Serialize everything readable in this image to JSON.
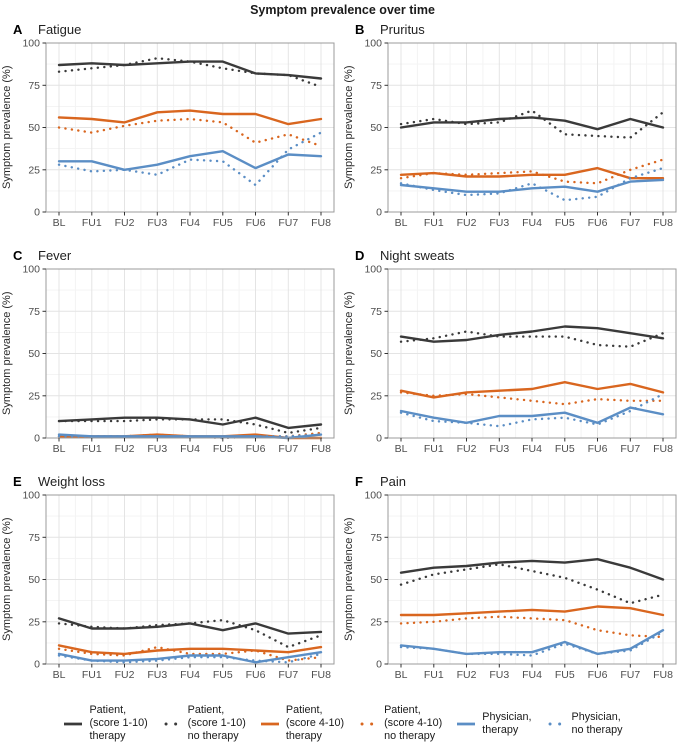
{
  "page": {
    "title": "Symptom prevalence over time"
  },
  "colors": {
    "dark": "#3a3a3a",
    "orange": "#d9661f",
    "blue": "#5b8ec5",
    "grid_major": "#e4e4e4",
    "grid_minor": "#f3f3f3",
    "panel_border": "#9b9b9b",
    "tick_mark": "#333333"
  },
  "chart_data": [
    {
      "type": "line",
      "panel": "A",
      "title": "Fatigue",
      "ylabel": "Symptom prevalence (%)",
      "xlabel": "",
      "categories": [
        "BL",
        "FU1",
        "FU2",
        "FU3",
        "FU4",
        "FU5",
        "FU6",
        "FU7",
        "FU8"
      ],
      "ylim": [
        0,
        100
      ],
      "yticks": [
        0,
        25,
        50,
        75,
        100
      ],
      "grid": true,
      "series": [
        {
          "name": "Patient, (score 1-10) therapy",
          "style": "solid",
          "color_key": "dark",
          "values": [
            87,
            88,
            87,
            88,
            89,
            89,
            82,
            81,
            79
          ]
        },
        {
          "name": "Patient, (score 1-10) no therapy",
          "style": "dotted",
          "color_key": "dark",
          "values": [
            83,
            85,
            87,
            91,
            89,
            85,
            82,
            81,
            74
          ]
        },
        {
          "name": "Patient, (score 4-10) therapy",
          "style": "solid",
          "color_key": "orange",
          "values": [
            56,
            55,
            53,
            59,
            60,
            58,
            58,
            52,
            55
          ]
        },
        {
          "name": "Patient, (score 4-10) no therapy",
          "style": "dotted",
          "color_key": "orange",
          "values": [
            50,
            47,
            51,
            54,
            55,
            53,
            41,
            46,
            39
          ]
        },
        {
          "name": "Physician, therapy",
          "style": "solid",
          "color_key": "blue",
          "values": [
            30,
            30,
            25,
            28,
            33,
            36,
            26,
            34,
            33
          ]
        },
        {
          "name": "Physician, no therapy",
          "style": "dotted",
          "color_key": "blue",
          "values": [
            28,
            24,
            25,
            22,
            31,
            30,
            16,
            37,
            47
          ]
        }
      ]
    },
    {
      "type": "line",
      "panel": "B",
      "title": "Pruritus",
      "ylabel": "Symptom prevalence (%)",
      "xlabel": "",
      "categories": [
        "BL",
        "FU1",
        "FU2",
        "FU3",
        "FU4",
        "FU5",
        "FU6",
        "FU7",
        "FU8"
      ],
      "ylim": [
        0,
        100
      ],
      "yticks": [
        0,
        25,
        50,
        75,
        100
      ],
      "grid": true,
      "series": [
        {
          "name": "Patient, (score 1-10) therapy",
          "style": "solid",
          "color_key": "dark",
          "values": [
            50,
            53,
            53,
            55,
            56,
            54,
            49,
            55,
            50
          ]
        },
        {
          "name": "Patient, (score 1-10) no therapy",
          "style": "dotted",
          "color_key": "dark",
          "values": [
            52,
            55,
            52,
            53,
            60,
            46,
            45,
            44,
            59
          ]
        },
        {
          "name": "Patient, (score 4-10) therapy",
          "style": "solid",
          "color_key": "orange",
          "values": [
            22,
            23,
            21,
            21,
            22,
            22,
            26,
            20,
            20
          ]
        },
        {
          "name": "Patient, (score 4-10) no therapy",
          "style": "dotted",
          "color_key": "orange",
          "values": [
            20,
            23,
            22,
            23,
            24,
            18,
            17,
            25,
            31
          ]
        },
        {
          "name": "Physician, therapy",
          "style": "solid",
          "color_key": "blue",
          "values": [
            16,
            14,
            12,
            12,
            14,
            15,
            12,
            18,
            19
          ]
        },
        {
          "name": "Physician, no therapy",
          "style": "dotted",
          "color_key": "blue",
          "values": [
            17,
            13,
            10,
            11,
            17,
            7,
            9,
            20,
            26
          ]
        }
      ]
    },
    {
      "type": "line",
      "panel": "C",
      "title": "Fever",
      "ylabel": "Symptom prevalence (%)",
      "xlabel": "",
      "categories": [
        "BL",
        "FU1",
        "FU2",
        "FU3",
        "FU4",
        "FU5",
        "FU6",
        "FU7",
        "FU8"
      ],
      "ylim": [
        0,
        100
      ],
      "yticks": [
        0,
        25,
        50,
        75,
        100
      ],
      "grid": true,
      "series": [
        {
          "name": "Patient, (score 1-10) therapy",
          "style": "solid",
          "color_key": "dark",
          "values": [
            10,
            11,
            12,
            12,
            11,
            8,
            12,
            6,
            8
          ]
        },
        {
          "name": "Patient, (score 1-10) no therapy",
          "style": "dotted",
          "color_key": "dark",
          "values": [
            10,
            10,
            10,
            11,
            11,
            11,
            8,
            3,
            6
          ]
        },
        {
          "name": "Patient, (score 4-10) therapy",
          "style": "solid",
          "color_key": "orange",
          "values": [
            1,
            1,
            1,
            2,
            1,
            1,
            2,
            0,
            0
          ]
        },
        {
          "name": "Patient, (score 4-10) no therapy",
          "style": "dotted",
          "color_key": "orange",
          "values": [
            1,
            1,
            1,
            2,
            1,
            0,
            1,
            1,
            3
          ]
        },
        {
          "name": "Physician, therapy",
          "style": "solid",
          "color_key": "blue",
          "values": [
            2,
            1,
            1,
            1,
            1,
            1,
            1,
            0,
            2
          ]
        },
        {
          "name": "Physician, no therapy",
          "style": "dotted",
          "color_key": "blue",
          "values": [
            1,
            1,
            1,
            1,
            1,
            0,
            1,
            1,
            2
          ]
        }
      ]
    },
    {
      "type": "line",
      "panel": "D",
      "title": "Night sweats",
      "ylabel": "Symptom prevalence (%)",
      "xlabel": "",
      "categories": [
        "BL",
        "FU1",
        "FU2",
        "FU3",
        "FU4",
        "FU5",
        "FU6",
        "FU7",
        "FU8"
      ],
      "ylim": [
        0,
        100
      ],
      "yticks": [
        0,
        25,
        50,
        75,
        100
      ],
      "grid": true,
      "series": [
        {
          "name": "Patient, (score 1-10) therapy",
          "style": "solid",
          "color_key": "dark",
          "values": [
            60,
            57,
            58,
            61,
            63,
            66,
            65,
            62,
            59
          ]
        },
        {
          "name": "Patient, (score 1-10) no therapy",
          "style": "dotted",
          "color_key": "dark",
          "values": [
            57,
            59,
            63,
            60,
            60,
            60,
            55,
            54,
            62
          ]
        },
        {
          "name": "Patient, (score 4-10) therapy",
          "style": "solid",
          "color_key": "orange",
          "values": [
            28,
            24,
            27,
            28,
            29,
            33,
            29,
            32,
            27
          ]
        },
        {
          "name": "Patient, (score 4-10) no therapy",
          "style": "dotted",
          "color_key": "orange",
          "values": [
            27,
            25,
            26,
            24,
            22,
            20,
            23,
            22,
            22
          ]
        },
        {
          "name": "Physician, therapy",
          "style": "solid",
          "color_key": "blue",
          "values": [
            16,
            12,
            9,
            13,
            13,
            15,
            9,
            18,
            14
          ]
        },
        {
          "name": "Physician, no therapy",
          "style": "dotted",
          "color_key": "blue",
          "values": [
            15,
            10,
            9,
            7,
            11,
            12,
            8,
            16,
            26
          ]
        }
      ]
    },
    {
      "type": "line",
      "panel": "E",
      "title": "Weight loss",
      "ylabel": "Symptom prevalence (%)",
      "xlabel": "",
      "categories": [
        "BL",
        "FU1",
        "FU2",
        "FU3",
        "FU4",
        "FU5",
        "FU6",
        "FU7",
        "FU8"
      ],
      "ylim": [
        0,
        100
      ],
      "yticks": [
        0,
        25,
        50,
        75,
        100
      ],
      "grid": true,
      "series": [
        {
          "name": "Patient, (score 1-10) therapy",
          "style": "solid",
          "color_key": "dark",
          "values": [
            27,
            21,
            21,
            22,
            24,
            20,
            24,
            18,
            19
          ]
        },
        {
          "name": "Patient, (score 1-10) no therapy",
          "style": "dotted",
          "color_key": "dark",
          "values": [
            24,
            22,
            21,
            23,
            24,
            26,
            20,
            10,
            17
          ]
        },
        {
          "name": "Patient, (score 4-10) therapy",
          "style": "solid",
          "color_key": "orange",
          "values": [
            11,
            7,
            6,
            8,
            9,
            9,
            8,
            7,
            10
          ]
        },
        {
          "name": "Patient, (score 4-10) no therapy",
          "style": "dotted",
          "color_key": "orange",
          "values": [
            9,
            6,
            5,
            10,
            6,
            6,
            8,
            2,
            4
          ]
        },
        {
          "name": "Physician, therapy",
          "style": "solid",
          "color_key": "blue",
          "values": [
            6,
            2,
            2,
            3,
            5,
            5,
            1,
            4,
            7
          ]
        },
        {
          "name": "Physician, no therapy",
          "style": "dotted",
          "color_key": "blue",
          "values": [
            5,
            2,
            1,
            2,
            4,
            4,
            2,
            1,
            6
          ]
        }
      ]
    },
    {
      "type": "line",
      "panel": "F",
      "title": "Pain",
      "ylabel": "Symptom prevalence (%)",
      "xlabel": "",
      "categories": [
        "BL",
        "FU1",
        "FU2",
        "FU3",
        "FU4",
        "FU5",
        "FU6",
        "FU7",
        "FU8"
      ],
      "ylim": [
        0,
        100
      ],
      "yticks": [
        0,
        25,
        50,
        75,
        100
      ],
      "grid": true,
      "series": [
        {
          "name": "Patient, (score 1-10) therapy",
          "style": "solid",
          "color_key": "dark",
          "values": [
            54,
            57,
            58,
            60,
            61,
            60,
            62,
            57,
            50
          ]
        },
        {
          "name": "Patient, (score 1-10) no therapy",
          "style": "dotted",
          "color_key": "dark",
          "values": [
            47,
            53,
            56,
            59,
            55,
            51,
            44,
            36,
            41
          ]
        },
        {
          "name": "Patient, (score 4-10) therapy",
          "style": "solid",
          "color_key": "orange",
          "values": [
            29,
            29,
            30,
            31,
            32,
            31,
            34,
            33,
            29
          ]
        },
        {
          "name": "Patient, (score 4-10) no therapy",
          "style": "dotted",
          "color_key": "orange",
          "values": [
            24,
            25,
            27,
            28,
            27,
            26,
            20,
            17,
            16
          ]
        },
        {
          "name": "Physician, therapy",
          "style": "solid",
          "color_key": "blue",
          "values": [
            11,
            9,
            6,
            7,
            7,
            13,
            6,
            9,
            20
          ]
        },
        {
          "name": "Physician, no therapy",
          "style": "dotted",
          "color_key": "blue",
          "values": [
            10,
            9,
            6,
            6,
            5,
            12,
            6,
            8,
            19
          ]
        }
      ]
    }
  ],
  "legend": {
    "items": [
      {
        "label": "Patient,\n(score 1-10)\ntherapy",
        "style": "solid",
        "color": "#3a3a3a"
      },
      {
        "label": "Patient,\n(score 1-10)\nno therapy",
        "style": "dotted",
        "color": "#3a3a3a"
      },
      {
        "label": "Patient,\n(score 4-10)\ntherapy",
        "style": "solid",
        "color": "#d9661f"
      },
      {
        "label": "Patient,\n(score 4-10)\nno therapy",
        "style": "dotted",
        "color": "#d9661f"
      },
      {
        "label": "Physician,\ntherapy",
        "style": "solid",
        "color": "#5b8ec5"
      },
      {
        "label": "Physician,\nno therapy",
        "style": "dotted",
        "color": "#5b8ec5"
      }
    ]
  }
}
